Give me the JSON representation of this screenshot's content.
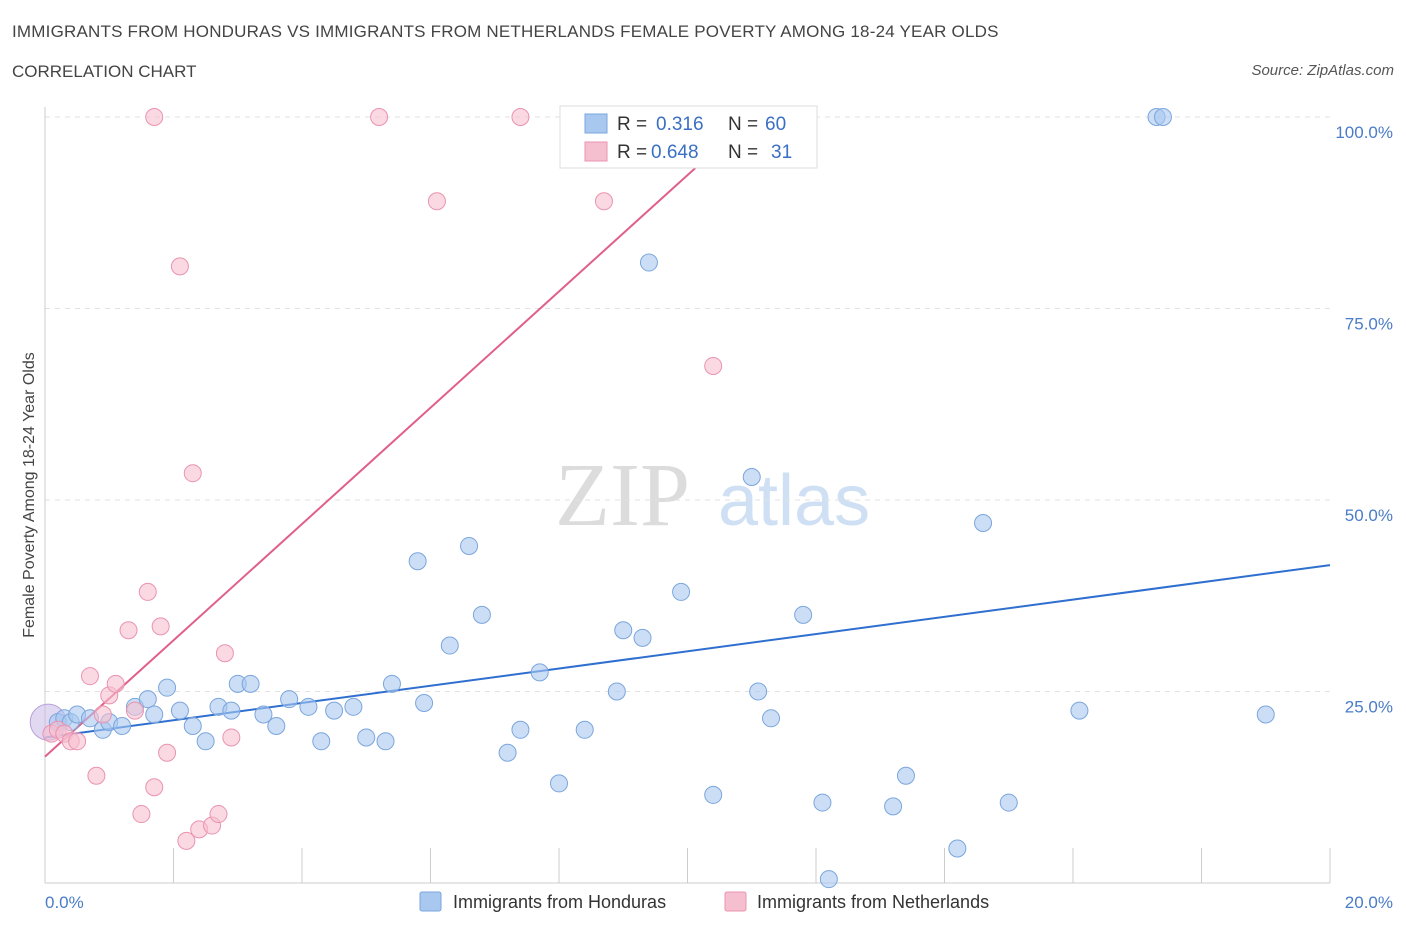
{
  "title": "IMMIGRANTS FROM HONDURAS VS IMMIGRANTS FROM NETHERLANDS FEMALE POVERTY AMONG 18-24 YEAR OLDS",
  "subtitle": "CORRELATION CHART",
  "source": "Source: ZipAtlas.com",
  "watermark": {
    "zip": "ZIP",
    "atlas": "atlas"
  },
  "chart_data": {
    "type": "scatter",
    "title": "IMMIGRANTS FROM HONDURAS VS IMMIGRANTS FROM NETHERLANDS FEMALE POVERTY AMONG 18-24 YEAR OLDS",
    "xlabel": "",
    "ylabel": "Female Poverty Among 18-24 Year Olds",
    "xlim": [
      0,
      20
    ],
    "ylim": [
      0,
      100
    ],
    "x_tick_labels": {
      "left": "0.0%",
      "right": "20.0%"
    },
    "y_ticks": [
      {
        "value": 25,
        "label": "25.0%"
      },
      {
        "value": 50,
        "label": "50.0%"
      },
      {
        "value": 75,
        "label": "75.0%"
      },
      {
        "value": 100,
        "label": "100.0%"
      }
    ],
    "grid": true,
    "legend_position": "top-center",
    "series": [
      {
        "name": "Immigrants from Honduras",
        "color": "#a9c8f0",
        "stroke": "#7ba6dc",
        "line_color": "#2f6fcf",
        "R": "0.316",
        "N": "60",
        "trend": {
          "x0": 0,
          "y0": 19,
          "x1": 20,
          "y1": 41.5
        },
        "points": [
          [
            0.2,
            21
          ],
          [
            0.3,
            21.5
          ],
          [
            0.4,
            21
          ],
          [
            0.5,
            22
          ],
          [
            0.7,
            21.5
          ],
          [
            0.9,
            20
          ],
          [
            1.0,
            21
          ],
          [
            1.2,
            20.5
          ],
          [
            1.4,
            23
          ],
          [
            1.6,
            24
          ],
          [
            1.7,
            22
          ],
          [
            1.9,
            25.5
          ],
          [
            2.1,
            22.5
          ],
          [
            2.3,
            20.5
          ],
          [
            2.5,
            18.5
          ],
          [
            2.7,
            23
          ],
          [
            2.9,
            22.5
          ],
          [
            3.0,
            26
          ],
          [
            3.2,
            26
          ],
          [
            3.4,
            22
          ],
          [
            3.6,
            20.5
          ],
          [
            3.8,
            24
          ],
          [
            4.1,
            23
          ],
          [
            4.3,
            18.5
          ],
          [
            4.5,
            22.5
          ],
          [
            4.8,
            23
          ],
          [
            5.0,
            19
          ],
          [
            5.3,
            18.5
          ],
          [
            5.4,
            26
          ],
          [
            5.8,
            42
          ],
          [
            5.9,
            23.5
          ],
          [
            6.3,
            31
          ],
          [
            6.6,
            44
          ],
          [
            6.8,
            35
          ],
          [
            7.2,
            17
          ],
          [
            7.4,
            20
          ],
          [
            7.7,
            27.5
          ],
          [
            8.0,
            13
          ],
          [
            8.4,
            20
          ],
          [
            8.9,
            25
          ],
          [
            9.0,
            33
          ],
          [
            9.3,
            32
          ],
          [
            9.4,
            81
          ],
          [
            9.9,
            38
          ],
          [
            10.4,
            11.5
          ],
          [
            11.0,
            53
          ],
          [
            11.1,
            25
          ],
          [
            11.3,
            21.5
          ],
          [
            11.8,
            35
          ],
          [
            12.1,
            10.5
          ],
          [
            12.2,
            0.5
          ],
          [
            13.2,
            10
          ],
          [
            13.4,
            14
          ],
          [
            14.2,
            4.5
          ],
          [
            14.6,
            47
          ],
          [
            15.0,
            10.5
          ],
          [
            16.1,
            22.5
          ],
          [
            17.3,
            100
          ],
          [
            17.4,
            100
          ],
          [
            19.0,
            22
          ]
        ]
      },
      {
        "name": "Immigrants from Netherlands",
        "color": "#f6bfd0",
        "stroke": "#ea93b0",
        "line_color": "#e0608a",
        "R": "0.648",
        "N": "31",
        "trend": {
          "x0": 0,
          "y0": 16.5,
          "x1": 11,
          "y1": 100
        },
        "points": [
          [
            0.1,
            19.5
          ],
          [
            0.2,
            20
          ],
          [
            0.3,
            19.5
          ],
          [
            0.4,
            18.5
          ],
          [
            0.5,
            18.5
          ],
          [
            0.7,
            27
          ],
          [
            0.8,
            14
          ],
          [
            0.9,
            22
          ],
          [
            1.0,
            24.5
          ],
          [
            1.1,
            26
          ],
          [
            1.3,
            33
          ],
          [
            1.4,
            22.5
          ],
          [
            1.5,
            9
          ],
          [
            1.6,
            38
          ],
          [
            1.7,
            12.5
          ],
          [
            1.8,
            33.5
          ],
          [
            1.9,
            17
          ],
          [
            2.1,
            80.5
          ],
          [
            2.2,
            5.5
          ],
          [
            2.3,
            53.5
          ],
          [
            2.4,
            7
          ],
          [
            2.6,
            7.5
          ],
          [
            2.7,
            9
          ],
          [
            2.8,
            30
          ],
          [
            2.9,
            19
          ],
          [
            1.7,
            100
          ],
          [
            5.2,
            100
          ],
          [
            7.4,
            100
          ],
          [
            6.1,
            89
          ],
          [
            8.7,
            89
          ],
          [
            10.4,
            67.5
          ]
        ]
      }
    ]
  },
  "legend": {
    "r_label": "R =",
    "n_label": "N ="
  }
}
